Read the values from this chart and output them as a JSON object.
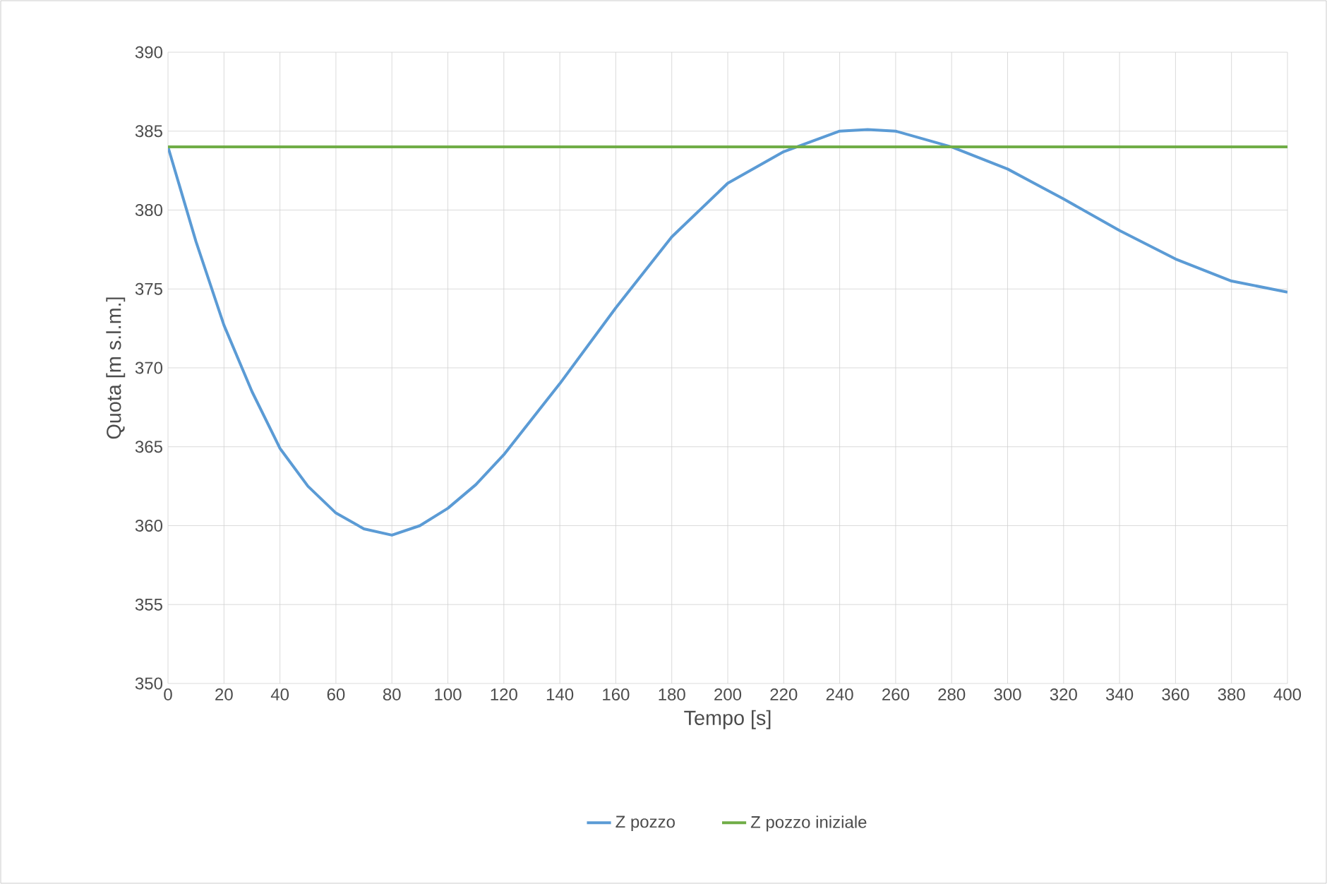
{
  "chart_data": {
    "type": "line",
    "xlabel": "Tempo [s]",
    "ylabel": "Quota [m s.l.m.]",
    "xlim": [
      0,
      400
    ],
    "ylim": [
      350,
      390
    ],
    "xticks": [
      0,
      20,
      40,
      60,
      80,
      100,
      120,
      140,
      160,
      180,
      200,
      220,
      240,
      260,
      280,
      300,
      320,
      340,
      360,
      380,
      400
    ],
    "yticks": [
      350,
      355,
      360,
      365,
      370,
      375,
      380,
      385,
      390
    ],
    "grid": true,
    "legend": "bottom",
    "marker": "none",
    "line_style": "solid",
    "series": [
      {
        "name": "Z pozzo",
        "color": "#5b9bd5",
        "x": [
          0,
          10,
          20,
          30,
          40,
          50,
          60,
          70,
          80,
          90,
          100,
          110,
          120,
          140,
          160,
          180,
          200,
          220,
          240,
          250,
          260,
          280,
          300,
          320,
          340,
          360,
          380,
          400
        ],
        "values": [
          384,
          378,
          372.7,
          368.5,
          364.9,
          362.5,
          360.8,
          359.8,
          359.4,
          360,
          361.1,
          362.6,
          364.5,
          369,
          373.8,
          378.3,
          381.7,
          383.7,
          385,
          385.1,
          385,
          384,
          382.6,
          380.7,
          378.7,
          376.9,
          375.5,
          374.8
        ]
      },
      {
        "name": "Z pozzo iniziale",
        "color": "#70ad47",
        "x": [
          0,
          400
        ],
        "values": [
          384,
          384
        ]
      }
    ]
  }
}
